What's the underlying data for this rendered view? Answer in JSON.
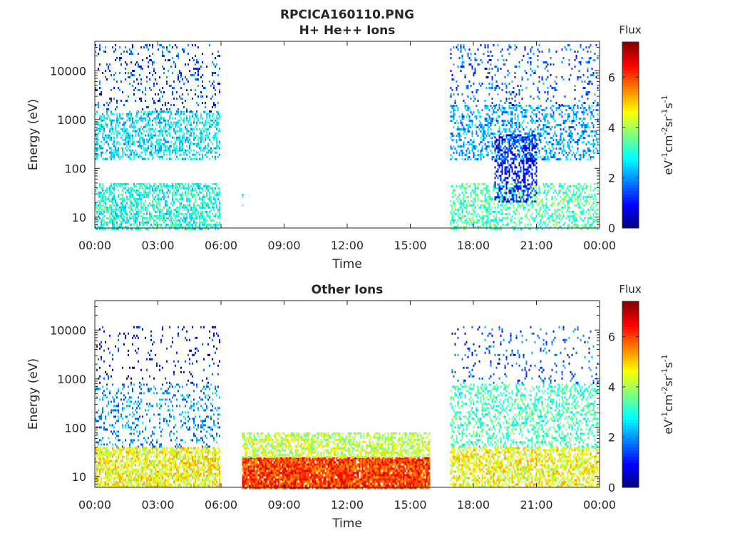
{
  "figure": {
    "title": "RPCICA160110.PNG"
  },
  "colorscale": {
    "title": "Flux",
    "ticks": [
      "0",
      "2",
      "4",
      "6"
    ],
    "tick_values": [
      0,
      2,
      4,
      6
    ],
    "range": [
      0,
      7.4
    ],
    "unit_parts": [
      "eV",
      "-1",
      "cm",
      "-2",
      "sr",
      "-1",
      "s",
      "-1"
    ],
    "colors": [
      "#00007f",
      "#0000ff",
      "#007fff",
      "#00ffff",
      "#7fff7f",
      "#ffff00",
      "#ff7f00",
      "#ff0000",
      "#7f0000"
    ]
  },
  "chart_data": [
    {
      "type": "heatmap",
      "title": "H+ He++ Ions",
      "xlabel": "Time",
      "ylabel": "Energy (eV)",
      "x_range_hours": [
        0,
        24
      ],
      "x_ticks": [
        "00:00",
        "03:00",
        "06:00",
        "09:00",
        "12:00",
        "15:00",
        "18:00",
        "21:00",
        "00:00"
      ],
      "y_scale": "log",
      "y_range_eV": [
        6,
        40000
      ],
      "y_ticks": [
        "10",
        "100",
        "1000",
        "10000"
      ],
      "colorbar_label": "Flux",
      "grid": false,
      "regions": [
        {
          "t": [
            0.0,
            5.9
          ],
          "e": [
            150,
            1500
          ],
          "flux": 2.6,
          "density": 0.45
        },
        {
          "t": [
            0.0,
            5.9
          ],
          "e": [
            1500,
            35000
          ],
          "flux": 1.5,
          "density": 0.12
        },
        {
          "t": [
            0.0,
            5.9
          ],
          "e": [
            6,
            50
          ],
          "flux": 3.0,
          "density": 0.55
        },
        {
          "t": [
            7.0,
            7.1
          ],
          "e": [
            15,
            30
          ],
          "flux": 3.2,
          "density": 0.3
        },
        {
          "t": [
            16.9,
            23.9
          ],
          "e": [
            150,
            2000
          ],
          "flux": 2.1,
          "density": 0.35
        },
        {
          "t": [
            16.9,
            23.9
          ],
          "e": [
            2000,
            35000
          ],
          "flux": 1.6,
          "density": 0.12
        },
        {
          "t": [
            16.9,
            23.9
          ],
          "e": [
            6,
            50
          ],
          "flux": 3.3,
          "density": 0.4
        },
        {
          "t": [
            19.0,
            21.0
          ],
          "e": [
            20,
            500
          ],
          "flux": 1.0,
          "density": 0.45
        }
      ]
    },
    {
      "type": "heatmap",
      "title": "Other Ions",
      "xlabel": "Time",
      "ylabel": "Energy (eV)",
      "x_range_hours": [
        0,
        24
      ],
      "x_ticks": [
        "00:00",
        "03:00",
        "06:00",
        "09:00",
        "12:00",
        "15:00",
        "18:00",
        "21:00",
        "00:00"
      ],
      "y_scale": "log",
      "y_range_eV": [
        6,
        40000
      ],
      "y_ticks": [
        "10",
        "100",
        "1000",
        "10000"
      ],
      "colorbar_label": "Flux",
      "grid": false,
      "regions": [
        {
          "t": [
            0.0,
            5.9
          ],
          "e": [
            6,
            40
          ],
          "flux": 4.6,
          "density": 0.7
        },
        {
          "t": [
            0.0,
            5.9
          ],
          "e": [
            40,
            800
          ],
          "flux": 2.0,
          "density": 0.18
        },
        {
          "t": [
            0.0,
            5.9
          ],
          "e": [
            800,
            12000
          ],
          "flux": 1.0,
          "density": 0.07
        },
        {
          "t": [
            7.0,
            15.9
          ],
          "e": [
            6,
            25
          ],
          "flux": 6.0,
          "density": 0.95
        },
        {
          "t": [
            7.0,
            15.9
          ],
          "e": [
            25,
            80
          ],
          "flux": 4.2,
          "density": 0.6
        },
        {
          "t": [
            16.9,
            23.9
          ],
          "e": [
            6,
            40
          ],
          "flux": 4.6,
          "density": 0.6
        },
        {
          "t": [
            16.9,
            23.9
          ],
          "e": [
            40,
            800
          ],
          "flux": 3.2,
          "density": 0.35
        },
        {
          "t": [
            16.9,
            23.9
          ],
          "e": [
            800,
            12000
          ],
          "flux": 1.5,
          "density": 0.08
        }
      ]
    }
  ]
}
